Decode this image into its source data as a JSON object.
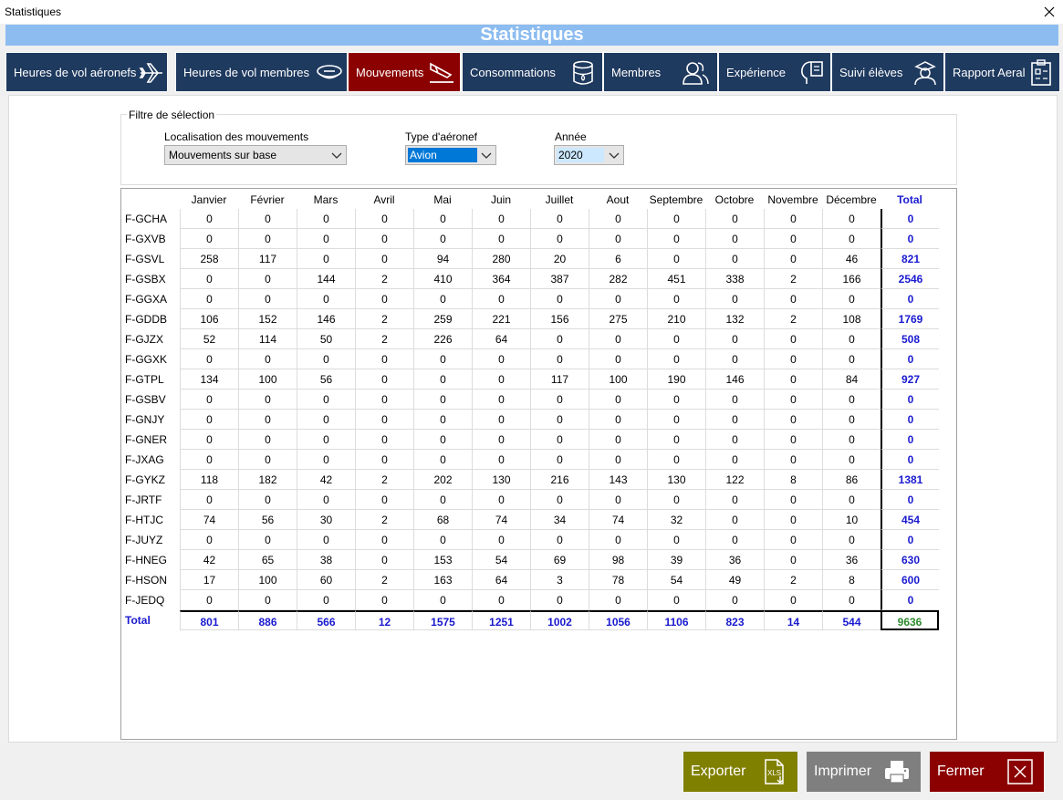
{
  "window": {
    "title": "Statistiques",
    "banner": "Statistiques"
  },
  "tabs": [
    {
      "label": "Heures de vol aéronefs",
      "icon": "airplane-icon"
    },
    {
      "label": "Heures de vol membres",
      "icon": "pilot-cap-icon"
    },
    {
      "label": "Mouvements",
      "icon": "plane-landing-icon",
      "active": true
    },
    {
      "label": "Consommations",
      "icon": "fuel-barrel-icon"
    },
    {
      "label": "Membres",
      "icon": "members-icon"
    },
    {
      "label": "Expérience",
      "icon": "experience-icon"
    },
    {
      "label": "Suivi élèves",
      "icon": "student-icon"
    },
    {
      "label": "Rapport Aeral",
      "icon": "report-icon"
    }
  ],
  "filter": {
    "legend": "Filtre de sélection",
    "location_label": "Localisation des mouvements",
    "location_value": "Mouvements sur base",
    "type_label": "Type d'aéronef",
    "type_value": "Avion",
    "year_label": "Année",
    "year_value": "2020"
  },
  "table": {
    "columns": [
      "Janvier",
      "Février",
      "Mars",
      "Avril",
      "Mai",
      "Juin",
      "Juillet",
      "Aout",
      "Septembre",
      "Octobre",
      "Novembre",
      "Décembre",
      "Total"
    ],
    "rows": [
      {
        "label": "F-GCHA",
        "values": [
          "0",
          "0",
          "0",
          "0",
          "0",
          "0",
          "0",
          "0",
          "0",
          "0",
          "0",
          "0"
        ],
        "total": "0"
      },
      {
        "label": "F-GXVB",
        "values": [
          "0",
          "0",
          "0",
          "0",
          "0",
          "0",
          "0",
          "0",
          "0",
          "0",
          "0",
          "0"
        ],
        "total": "0"
      },
      {
        "label": "F-GSVL",
        "values": [
          "258",
          "117",
          "0",
          "0",
          "94",
          "280",
          "20",
          "6",
          "0",
          "0",
          "0",
          "46"
        ],
        "total": "821"
      },
      {
        "label": "F-GSBX",
        "values": [
          "0",
          "0",
          "144",
          "2",
          "410",
          "364",
          "387",
          "282",
          "451",
          "338",
          "2",
          "166"
        ],
        "total": "2546"
      },
      {
        "label": "F-GGXA",
        "values": [
          "0",
          "0",
          "0",
          "0",
          "0",
          "0",
          "0",
          "0",
          "0",
          "0",
          "0",
          "0"
        ],
        "total": "0"
      },
      {
        "label": "F-GDDB",
        "values": [
          "106",
          "152",
          "146",
          "2",
          "259",
          "221",
          "156",
          "275",
          "210",
          "132",
          "2",
          "108"
        ],
        "total": "1769"
      },
      {
        "label": "F-GJZX",
        "values": [
          "52",
          "114",
          "50",
          "2",
          "226",
          "64",
          "0",
          "0",
          "0",
          "0",
          "0",
          "0"
        ],
        "total": "508"
      },
      {
        "label": "F-GGXK",
        "values": [
          "0",
          "0",
          "0",
          "0",
          "0",
          "0",
          "0",
          "0",
          "0",
          "0",
          "0",
          "0"
        ],
        "total": "0"
      },
      {
        "label": "F-GTPL",
        "values": [
          "134",
          "100",
          "56",
          "0",
          "0",
          "0",
          "117",
          "100",
          "190",
          "146",
          "0",
          "84"
        ],
        "total": "927"
      },
      {
        "label": "F-GSBV",
        "values": [
          "0",
          "0",
          "0",
          "0",
          "0",
          "0",
          "0",
          "0",
          "0",
          "0",
          "0",
          "0"
        ],
        "total": "0"
      },
      {
        "label": "F-GNJY",
        "values": [
          "0",
          "0",
          "0",
          "0",
          "0",
          "0",
          "0",
          "0",
          "0",
          "0",
          "0",
          "0"
        ],
        "total": "0"
      },
      {
        "label": "F-GNER",
        "values": [
          "0",
          "0",
          "0",
          "0",
          "0",
          "0",
          "0",
          "0",
          "0",
          "0",
          "0",
          "0"
        ],
        "total": "0"
      },
      {
        "label": "F-JXAG",
        "values": [
          "0",
          "0",
          "0",
          "0",
          "0",
          "0",
          "0",
          "0",
          "0",
          "0",
          "0",
          "0"
        ],
        "total": "0"
      },
      {
        "label": "F-GYKZ",
        "values": [
          "118",
          "182",
          "42",
          "2",
          "202",
          "130",
          "216",
          "143",
          "130",
          "122",
          "8",
          "86"
        ],
        "total": "1381"
      },
      {
        "label": "F-JRTF",
        "values": [
          "0",
          "0",
          "0",
          "0",
          "0",
          "0",
          "0",
          "0",
          "0",
          "0",
          "0",
          "0"
        ],
        "total": "0"
      },
      {
        "label": "F-HTJC",
        "values": [
          "74",
          "56",
          "30",
          "2",
          "68",
          "74",
          "34",
          "74",
          "32",
          "0",
          "0",
          "10"
        ],
        "total": "454"
      },
      {
        "label": "F-JUYZ",
        "values": [
          "0",
          "0",
          "0",
          "0",
          "0",
          "0",
          "0",
          "0",
          "0",
          "0",
          "0",
          "0"
        ],
        "total": "0"
      },
      {
        "label": "F-HNEG",
        "values": [
          "42",
          "65",
          "38",
          "0",
          "153",
          "54",
          "69",
          "98",
          "39",
          "36",
          "0",
          "36"
        ],
        "total": "630"
      },
      {
        "label": "F-HSON",
        "values": [
          "17",
          "100",
          "60",
          "2",
          "163",
          "64",
          "3",
          "78",
          "54",
          "49",
          "2",
          "8"
        ],
        "total": "600"
      },
      {
        "label": "F-JEDQ",
        "values": [
          "0",
          "0",
          "0",
          "0",
          "0",
          "0",
          "0",
          "0",
          "0",
          "0",
          "0",
          "0"
        ],
        "total": "0"
      }
    ],
    "total_row": {
      "label": "Total",
      "values": [
        "801",
        "886",
        "566",
        "12",
        "1575",
        "1251",
        "1002",
        "1056",
        "1106",
        "823",
        "14",
        "544"
      ],
      "total": "9636"
    }
  },
  "buttons": {
    "export": {
      "label": "Exporter",
      "icon": "xls-file-icon"
    },
    "print": {
      "label": "Imprimer",
      "icon": "printer-icon"
    },
    "close": {
      "label": "Fermer",
      "icon": "close-box-icon"
    }
  },
  "colors": {
    "banner": "#8cbcf0",
    "tab": "#1f3a5f",
    "tab_active": "#8b0000",
    "total_text": "#1a1ad0",
    "grand_total": "#2e8b2e",
    "export_btn": "#808000",
    "print_btn": "#7f7f7f",
    "close_btn": "#8b0000"
  }
}
